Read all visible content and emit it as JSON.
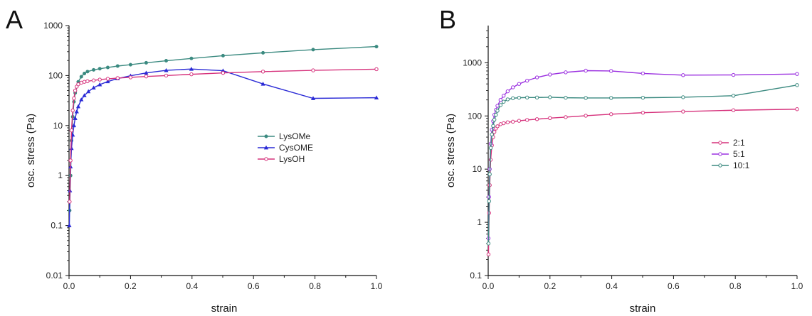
{
  "chart_data": [
    {
      "type": "line",
      "panel_label": "A",
      "xlabel": "strain",
      "ylabel": "osc. stress (Pa)",
      "xlim": [
        0,
        1.0
      ],
      "ylim": [
        0.01,
        1000
      ],
      "yscale": "log",
      "x_ticks": [
        "0.0",
        "0.2",
        "0.4",
        "0.6",
        "0.8",
        "1.0"
      ],
      "y_ticks": [
        "0.01",
        "0.1",
        "1",
        "10",
        "100",
        "1000"
      ],
      "grid": false,
      "legend_position": "center-right",
      "series": [
        {
          "name": "LysOMe",
          "color": "#3b8a80",
          "marker": "filled-circle",
          "x": [
            0.002,
            0.005,
            0.008,
            0.012,
            0.016,
            0.02,
            0.025,
            0.03,
            0.04,
            0.05,
            0.06,
            0.08,
            0.1,
            0.126,
            0.158,
            0.2,
            0.251,
            0.316,
            0.398,
            0.501,
            0.631,
            0.794,
            1.0
          ],
          "y": [
            0.2,
            1,
            5,
            15,
            30,
            45,
            60,
            75,
            95,
            110,
            120,
            130,
            137,
            145,
            155,
            165,
            180,
            198,
            220,
            250,
            285,
            330,
            380
          ]
        },
        {
          "name": "CysOME",
          "color": "#2b2bd6",
          "marker": "filled-triangle",
          "x": [
            0.001,
            0.003,
            0.005,
            0.008,
            0.012,
            0.016,
            0.02,
            0.025,
            0.03,
            0.04,
            0.05,
            0.063,
            0.08,
            0.1,
            0.126,
            0.158,
            0.2,
            0.251,
            0.316,
            0.398,
            0.501,
            0.631,
            0.794,
            1.0
          ],
          "y": [
            0.1,
            0.5,
            1.5,
            3.5,
            6.5,
            10,
            14,
            19,
            24,
            33,
            40,
            48,
            57,
            66,
            76,
            87,
            99,
            113,
            127,
            135,
            125,
            68,
            35,
            36
          ]
        },
        {
          "name": "LysOH",
          "color": "#d6327c",
          "marker": "open-circle",
          "x": [
            0.002,
            0.005,
            0.008,
            0.012,
            0.016,
            0.02,
            0.025,
            0.03,
            0.04,
            0.05,
            0.06,
            0.08,
            0.1,
            0.126,
            0.158,
            0.2,
            0.251,
            0.316,
            0.398,
            0.501,
            0.631,
            0.794,
            1.0
          ],
          "y": [
            0.3,
            2,
            8,
            20,
            35,
            50,
            60,
            67,
            72,
            75,
            77,
            80,
            83,
            86,
            89,
            92,
            96,
            100,
            106,
            113,
            120,
            127,
            134
          ]
        }
      ]
    },
    {
      "type": "line",
      "panel_label": "B",
      "xlabel": "strain",
      "ylabel": "osc. stress (Pa)",
      "xlim": [
        0,
        1.0
      ],
      "ylim": [
        0.1,
        5000
      ],
      "yscale": "log",
      "x_ticks": [
        "0.0",
        "0.2",
        "0.4",
        "0.6",
        "0.8",
        "1.0"
      ],
      "y_ticks": [
        "0.1",
        "1",
        "10",
        "100",
        "1000"
      ],
      "grid": false,
      "legend_position": "center-right",
      "series": [
        {
          "name": "2:1",
          "color": "#d6327c",
          "marker": "open-circle",
          "x": [
            0.001,
            0.003,
            0.005,
            0.008,
            0.012,
            0.016,
            0.02,
            0.025,
            0.03,
            0.04,
            0.05,
            0.063,
            0.08,
            0.1,
            0.126,
            0.158,
            0.2,
            0.251,
            0.316,
            0.398,
            0.501,
            0.631,
            0.794,
            1.0
          ],
          "y": [
            0.25,
            1.5,
            5,
            15,
            28,
            40,
            50,
            58,
            64,
            70,
            73,
            76,
            78,
            81,
            84,
            87,
            91,
            95,
            101,
            108,
            115,
            121,
            128,
            134
          ]
        },
        {
          "name": "5:1",
          "color": "#9b30e0",
          "marker": "open-circle",
          "x": [
            0.001,
            0.003,
            0.005,
            0.008,
            0.012,
            0.016,
            0.02,
            0.025,
            0.03,
            0.04,
            0.05,
            0.063,
            0.08,
            0.1,
            0.126,
            0.158,
            0.2,
            0.251,
            0.316,
            0.398,
            0.501,
            0.631,
            0.794,
            1.0
          ],
          "y": [
            0.5,
            3,
            10,
            30,
            55,
            80,
            105,
            130,
            155,
            200,
            240,
            290,
            345,
            400,
            460,
            530,
            600,
            660,
            710,
            700,
            630,
            585,
            590,
            615
          ]
        },
        {
          "name": "10:1",
          "color": "#3b8a80",
          "marker": "open-circle",
          "x": [
            0.001,
            0.003,
            0.005,
            0.008,
            0.012,
            0.016,
            0.02,
            0.025,
            0.03,
            0.04,
            0.05,
            0.063,
            0.08,
            0.1,
            0.126,
            0.158,
            0.2,
            0.251,
            0.316,
            0.398,
            0.501,
            0.631,
            0.794,
            1.0
          ],
          "y": [
            0.4,
            2.5,
            8,
            25,
            45,
            65,
            85,
            105,
            125,
            160,
            185,
            205,
            215,
            220,
            222,
            222,
            225,
            220,
            218,
            218,
            220,
            225,
            240,
            380
          ]
        }
      ]
    }
  ]
}
